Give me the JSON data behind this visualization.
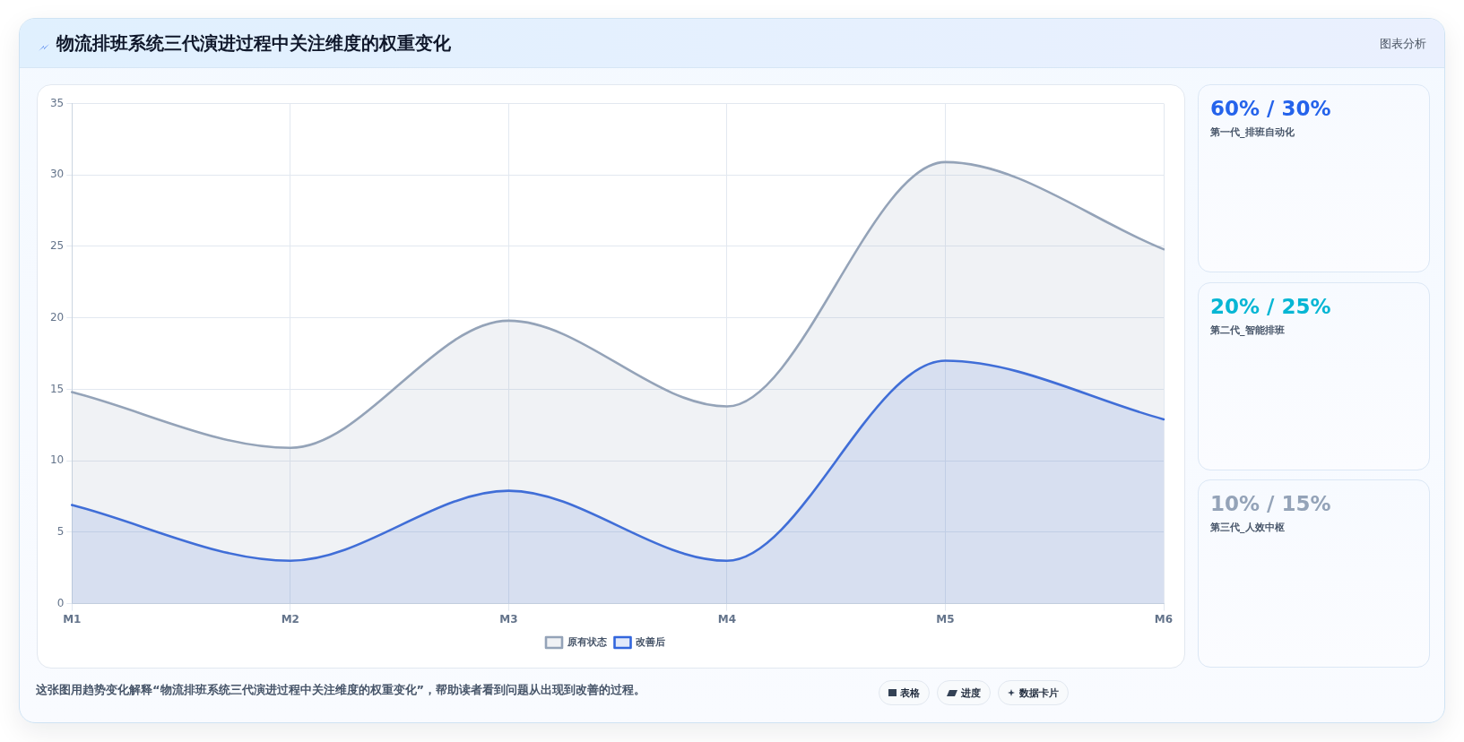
{
  "chart_data": [
    {
      "type": "area",
      "title": "物流排班系统三代演进过程中关注维度的权重变化",
      "categories": [
        "M1",
        "M2",
        "M3",
        "M4",
        "M5",
        "M6"
      ],
      "series": [
        {
          "name": "原有状态",
          "color": "#94a3b8",
          "values": [
            14.8,
            10.9,
            19.8,
            13.8,
            30.9,
            24.8
          ]
        },
        {
          "name": "改善后",
          "color": "#3366dd",
          "values": [
            6.9,
            3,
            7.9,
            3,
            17,
            12.9
          ]
        }
      ],
      "ylim": [
        0,
        35
      ],
      "yticks": [
        0,
        5,
        10,
        15,
        20,
        25,
        30,
        35
      ],
      "grid": true,
      "legend": "bottom",
      "marker": "none",
      "annotations": [
        "图表分析",
        "这张图用趋势变化解释“物流排班系统三代演进过程中关注维度的权重变化”，帮助读者看到问题从出现到改善的过程。",
        "表格",
        "进度",
        "数据卡片"
      ]
    },
    {
      "type": "other",
      "annotations": [
        "60% / 30%",
        "第一代_排班自动化",
        "20% / 25%",
        "第二代_智能排班",
        "10% / 15%",
        "第三代_人效中枢"
      ]
    }
  ]
}
